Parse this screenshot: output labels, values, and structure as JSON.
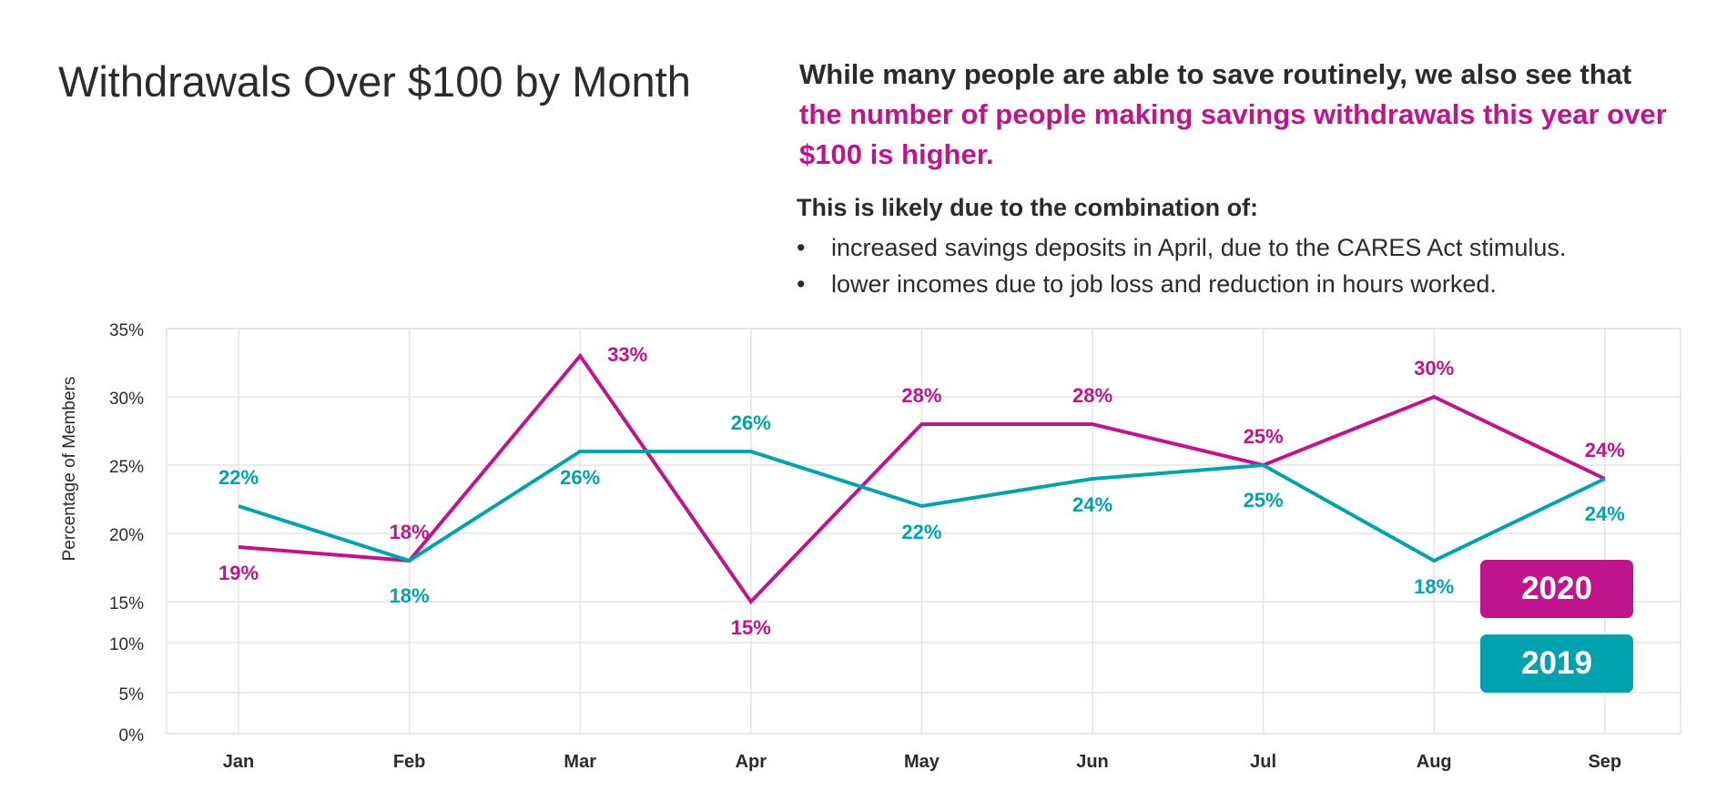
{
  "header": {
    "title": "Withdrawals Over $100 by Month",
    "headline_lead": "While many people are able to save routinely, we also see that ",
    "headline_highlight": "the number of people making savings withdrawals this year over $100 is higher.",
    "subhead": "This is likely due to the combination of:",
    "bullets": [
      "increased savings deposits in April, due to the CARES Act stimulus.",
      "lower incomes due to job loss and reduction in hours worked."
    ],
    "bullet_glyph": "•"
  },
  "colors": {
    "series_2020": "#c0148d",
    "series_2019": "#00a3ad",
    "grid": "#e3e3e3",
    "text": "#2b2b2b"
  },
  "chart_data": {
    "type": "line",
    "ylabel": "Percentage of Members",
    "xlabel": "",
    "categories": [
      "Jan",
      "Feb",
      "Mar",
      "Apr",
      "May",
      "Jun",
      "Jul",
      "Aug",
      "Sep"
    ],
    "yticks": [
      0,
      5,
      10,
      15,
      20,
      25,
      30,
      35
    ],
    "ytick_labels": [
      "0%",
      "5%",
      "10%",
      "15%",
      "20%",
      "25%",
      "30%",
      "35%"
    ],
    "ylim": [
      0,
      35
    ],
    "grid": true,
    "legend_position": "bottom-right",
    "series": [
      {
        "name": "2020",
        "values": [
          19,
          18,
          33,
          15,
          28,
          28,
          25,
          30,
          24
        ],
        "labels": [
          "19%",
          "18%",
          "33%",
          "15%",
          "28%",
          "28%",
          "25%",
          "30%",
          "24%"
        ]
      },
      {
        "name": "2019",
        "values": [
          22,
          18,
          26,
          26,
          22,
          24,
          25,
          18,
          24
        ],
        "labels": [
          "22%",
          "18%",
          "26%",
          "26%",
          "22%",
          "24%",
          "25%",
          "18%",
          "24%"
        ]
      }
    ]
  }
}
